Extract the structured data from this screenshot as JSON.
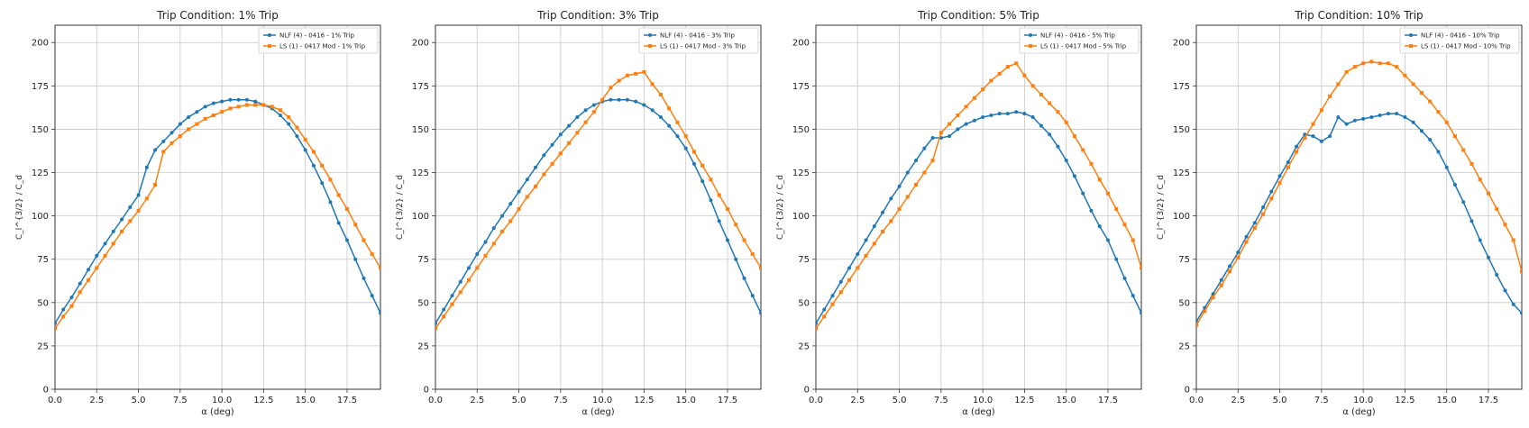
{
  "colors": {
    "series1": "#1f77b4",
    "series2": "#ff7f0e",
    "grid": "#c8c8c8"
  },
  "chart_data": [
    {
      "type": "line",
      "title": "Trip Condition: 1% Trip",
      "xlabel": "α (deg)",
      "ylabel": "C_l^{3/2} / C_d",
      "xlim": [
        0,
        19.5
      ],
      "ylim": [
        0,
        210
      ],
      "xticks": [
        "0.0",
        "2.5",
        "5.0",
        "7.5",
        "10.0",
        "12.5",
        "15.0",
        "17.5"
      ],
      "yticks": [
        "0",
        "25",
        "50",
        "75",
        "100",
        "125",
        "150",
        "175",
        "200"
      ],
      "grid": true,
      "legend": "top-right",
      "series": [
        {
          "name": "NLF (4) - 0416 - 1% Trip",
          "color": "#1f77b4",
          "x": [
            0,
            0.5,
            1,
            1.5,
            2,
            2.5,
            3,
            3.5,
            4,
            4.5,
            5,
            5.5,
            6,
            6.5,
            7,
            7.5,
            8,
            8.5,
            9,
            9.5,
            10,
            10.5,
            11,
            11.5,
            12,
            12.5,
            13,
            13.5,
            14,
            14.5,
            15,
            15.5,
            16,
            16.5,
            17,
            17.5,
            18,
            18.5,
            19,
            19.5
          ],
          "y": [
            38,
            46,
            53,
            61,
            69,
            77,
            84,
            91,
            98,
            105,
            112,
            128,
            138,
            143,
            148,
            153,
            157,
            160,
            163,
            165,
            166,
            167,
            167,
            167,
            166,
            164,
            162,
            158,
            153,
            146,
            138,
            129,
            119,
            108,
            96,
            86,
            75,
            64,
            54,
            44
          ]
        },
        {
          "name": "LS (1) - 0417 Mod - 1% Trip",
          "color": "#ff7f0e",
          "x": [
            0,
            0.5,
            1,
            1.5,
            2,
            2.5,
            3,
            3.5,
            4,
            4.5,
            5,
            5.5,
            6,
            6.5,
            7,
            7.5,
            8,
            8.5,
            9,
            9.5,
            10,
            10.5,
            11,
            11.5,
            12,
            12.5,
            13,
            13.5,
            14,
            14.5,
            15,
            15.5,
            16,
            16.5,
            17,
            17.5,
            18,
            18.5,
            19,
            19.5
          ],
          "y": [
            35,
            42,
            48,
            56,
            63,
            70,
            77,
            84,
            91,
            97,
            103,
            110,
            118,
            137,
            142,
            146,
            150,
            153,
            156,
            158,
            160,
            162,
            163,
            164,
            164,
            164,
            163,
            161,
            157,
            151,
            144,
            137,
            129,
            121,
            112,
            104,
            95,
            86,
            78,
            70
          ]
        }
      ]
    },
    {
      "type": "line",
      "title": "Trip Condition: 3% Trip",
      "xlabel": "α (deg)",
      "ylabel": "C_l^{3/2} / C_d",
      "xlim": [
        0,
        19.5
      ],
      "ylim": [
        0,
        210
      ],
      "xticks": [
        "0.0",
        "2.5",
        "5.0",
        "7.5",
        "10.0",
        "12.5",
        "15.0",
        "17.5"
      ],
      "yticks": [
        "0",
        "25",
        "50",
        "75",
        "100",
        "125",
        "150",
        "175",
        "200"
      ],
      "grid": true,
      "legend": "top-right",
      "series": [
        {
          "name": "NLF (4) - 0416 - 3% Trip",
          "color": "#1f77b4",
          "x": [
            0,
            0.5,
            1,
            1.5,
            2,
            2.5,
            3,
            3.5,
            4,
            4.5,
            5,
            5.5,
            6,
            6.5,
            7,
            7.5,
            8,
            8.5,
            9,
            9.5,
            10,
            10.5,
            11,
            11.5,
            12,
            12.5,
            13,
            13.5,
            14,
            14.5,
            15,
            15.5,
            16,
            16.5,
            17,
            17.5,
            18,
            18.5,
            19,
            19.5
          ],
          "y": [
            38,
            46,
            54,
            62,
            70,
            78,
            85,
            93,
            100,
            107,
            114,
            121,
            128,
            135,
            141,
            147,
            152,
            157,
            161,
            164,
            166,
            167,
            167,
            167,
            166,
            164,
            161,
            157,
            152,
            146,
            139,
            130,
            120,
            109,
            97,
            86,
            75,
            64,
            54,
            44
          ]
        },
        {
          "name": "LS (1) - 0417 Mod - 3% Trip",
          "color": "#ff7f0e",
          "x": [
            0,
            0.5,
            1,
            1.5,
            2,
            2.5,
            3,
            3.5,
            4,
            4.5,
            5,
            5.5,
            6,
            6.5,
            7,
            7.5,
            8,
            8.5,
            9,
            9.5,
            10,
            10.5,
            11,
            11.5,
            12,
            12.5,
            13,
            13.5,
            14,
            14.5,
            15,
            15.5,
            16,
            16.5,
            17,
            17.5,
            18,
            18.5,
            19,
            19.5
          ],
          "y": [
            35,
            42,
            49,
            56,
            63,
            70,
            77,
            84,
            91,
            97,
            104,
            111,
            117,
            124,
            130,
            136,
            142,
            148,
            154,
            160,
            167,
            174,
            178,
            181,
            182,
            183,
            176,
            170,
            162,
            154,
            146,
            137,
            129,
            121,
            112,
            104,
            95,
            86,
            78,
            70
          ]
        }
      ]
    },
    {
      "type": "line",
      "title": "Trip Condition: 5% Trip",
      "xlabel": "α (deg)",
      "ylabel": "C_l^{3/2} / C_d",
      "xlim": [
        0,
        19.5
      ],
      "ylim": [
        0,
        210
      ],
      "xticks": [
        "0.0",
        "2.5",
        "5.0",
        "7.5",
        "10.0",
        "12.5",
        "15.0",
        "17.5"
      ],
      "yticks": [
        "0",
        "25",
        "50",
        "75",
        "100",
        "125",
        "150",
        "175",
        "200"
      ],
      "grid": true,
      "legend": "top-right",
      "series": [
        {
          "name": "NLF (4) - 0416 - 5% Trip",
          "color": "#1f77b4",
          "x": [
            0,
            0.5,
            1,
            1.5,
            2,
            2.5,
            3,
            3.5,
            4,
            4.5,
            5,
            5.5,
            6,
            6.5,
            7,
            7.5,
            8,
            8.5,
            9,
            9.5,
            10,
            10.5,
            11,
            11.5,
            12,
            12.5,
            13,
            13.5,
            14,
            14.5,
            15,
            15.5,
            16,
            16.5,
            17,
            17.5,
            18,
            18.5,
            19,
            19.5
          ],
          "y": [
            38,
            46,
            54,
            62,
            70,
            78,
            86,
            94,
            102,
            110,
            117,
            125,
            132,
            139,
            145,
            145,
            146,
            150,
            153,
            155,
            157,
            158,
            159,
            159,
            160,
            159,
            157,
            152,
            147,
            140,
            132,
            123,
            113,
            103,
            94,
            86,
            75,
            64,
            54,
            44
          ]
        },
        {
          "name": "LS (1) - 0417 Mod - 5% Trip",
          "color": "#ff7f0e",
          "x": [
            0,
            0.5,
            1,
            1.5,
            2,
            2.5,
            3,
            3.5,
            4,
            4.5,
            5,
            5.5,
            6,
            6.5,
            7,
            7.5,
            8,
            8.5,
            9,
            9.5,
            10,
            10.5,
            11,
            11.5,
            12,
            12.5,
            13,
            13.5,
            14,
            14.5,
            15,
            15.5,
            16,
            16.5,
            17,
            17.5,
            18,
            18.5,
            19,
            19.5
          ],
          "y": [
            35,
            42,
            49,
            56,
            63,
            70,
            77,
            84,
            91,
            97,
            104,
            111,
            118,
            125,
            132,
            148,
            153,
            158,
            163,
            168,
            173,
            178,
            182,
            186,
            188,
            181,
            175,
            170,
            165,
            160,
            154,
            146,
            138,
            130,
            121,
            113,
            104,
            95,
            86,
            70
          ]
        }
      ]
    },
    {
      "type": "line",
      "title": "Trip Condition: 10% Trip",
      "xlabel": "α (deg)",
      "ylabel": "C_l^{3/2} / C_d",
      "xlim": [
        0,
        19.5
      ],
      "ylim": [
        0,
        210
      ],
      "xticks": [
        "0.0",
        "2.5",
        "5.0",
        "7.5",
        "10.0",
        "12.5",
        "15.0",
        "17.5"
      ],
      "yticks": [
        "0",
        "25",
        "50",
        "75",
        "100",
        "125",
        "150",
        "175",
        "200"
      ],
      "grid": true,
      "legend": "top-right",
      "series": [
        {
          "name": "NLF (4) - 0416 - 10% Trip",
          "color": "#1f77b4",
          "x": [
            0,
            0.5,
            1,
            1.5,
            2,
            2.5,
            3,
            3.5,
            4,
            4.5,
            5,
            5.5,
            6,
            6.5,
            7,
            7.5,
            8,
            8.5,
            9,
            9.5,
            10,
            10.5,
            11,
            11.5,
            12,
            12.5,
            13,
            13.5,
            14,
            14.5,
            15,
            15.5,
            16,
            16.5,
            17,
            17.5,
            18,
            18.5,
            19,
            19.5
          ],
          "y": [
            39,
            47,
            55,
            63,
            71,
            79,
            88,
            96,
            105,
            114,
            123,
            131,
            140,
            147,
            146,
            143,
            146,
            157,
            153,
            155,
            156,
            157,
            158,
            159,
            159,
            157,
            154,
            149,
            144,
            137,
            128,
            118,
            108,
            97,
            86,
            76,
            66,
            57,
            49,
            44
          ]
        },
        {
          "name": "LS (1) - 0417 Mod - 10% Trip",
          "color": "#ff7f0e",
          "x": [
            0,
            0.5,
            1,
            1.5,
            2,
            2.5,
            3,
            3.5,
            4,
            4.5,
            5,
            5.5,
            6,
            6.5,
            7,
            7.5,
            8,
            8.5,
            9,
            9.5,
            10,
            10.5,
            11,
            11.5,
            12,
            12.5,
            13,
            13.5,
            14,
            14.5,
            15,
            15.5,
            16,
            16.5,
            17,
            17.5,
            18,
            18.5,
            19,
            19.5
          ],
          "y": [
            37,
            45,
            53,
            60,
            68,
            76,
            85,
            93,
            101,
            110,
            119,
            128,
            137,
            145,
            153,
            161,
            169,
            176,
            183,
            186,
            188,
            189,
            188,
            188,
            186,
            181,
            176,
            171,
            166,
            160,
            154,
            146,
            138,
            130,
            121,
            113,
            104,
            95,
            86,
            68
          ]
        }
      ]
    }
  ]
}
